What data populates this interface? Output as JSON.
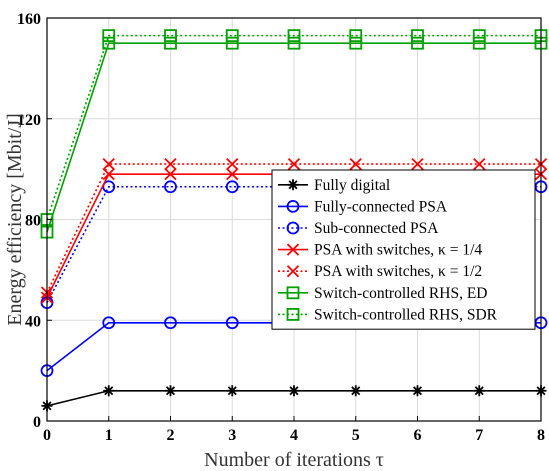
{
  "chart_data": {
    "type": "line",
    "xlabel": "Number of iterations τ",
    "ylabel": "Energy efficiency [Mbit/J]",
    "xlim": [
      0,
      8
    ],
    "ylim": [
      0,
      160
    ],
    "xticks": [
      "0",
      "1",
      "2",
      "3",
      "4",
      "5",
      "6",
      "7",
      "8"
    ],
    "yticks": [
      "0",
      "40",
      "80",
      "120",
      "160"
    ],
    "grid": true,
    "legend_position": "right",
    "x": [
      0,
      1,
      2,
      3,
      4,
      5,
      6,
      7,
      8
    ],
    "series": [
      {
        "name": "Fully digital",
        "color": "#000000",
        "marker": "star",
        "dashed": false,
        "values": [
          6,
          12,
          12,
          12,
          12,
          12,
          12,
          12,
          12
        ]
      },
      {
        "name": "Fully-connected PSA",
        "color": "#0000ff",
        "marker": "circle",
        "dashed": false,
        "values": [
          20,
          39,
          39,
          39,
          39,
          39,
          39,
          39,
          39
        ]
      },
      {
        "name": "Sub-connected PSA",
        "color": "#0000ff",
        "marker": "circle",
        "dashed": true,
        "values": [
          47,
          93,
          93,
          93,
          93,
          93,
          93,
          93,
          93
        ]
      },
      {
        "name": "PSA with switches, κ = 1/4",
        "color": "#ff0000",
        "marker": "x",
        "dashed": false,
        "values": [
          49,
          98,
          98,
          98,
          98,
          98,
          98,
          98,
          98
        ]
      },
      {
        "name": "PSA with switches, κ = 1/2",
        "color": "#ff0000",
        "marker": "x",
        "dashed": true,
        "values": [
          51,
          102,
          102,
          102,
          102,
          102,
          102,
          102,
          102
        ]
      },
      {
        "name": "Switch-controlled RHS, ED",
        "color": "#00a000",
        "marker": "square",
        "dashed": false,
        "values": [
          75,
          150,
          150,
          150,
          150,
          150,
          150,
          150,
          150
        ]
      },
      {
        "name": "Switch-controlled RHS, SDR",
        "color": "#00a000",
        "marker": "square",
        "dashed": true,
        "values": [
          80,
          153,
          153,
          153,
          153,
          153,
          153,
          153,
          153
        ]
      }
    ]
  }
}
